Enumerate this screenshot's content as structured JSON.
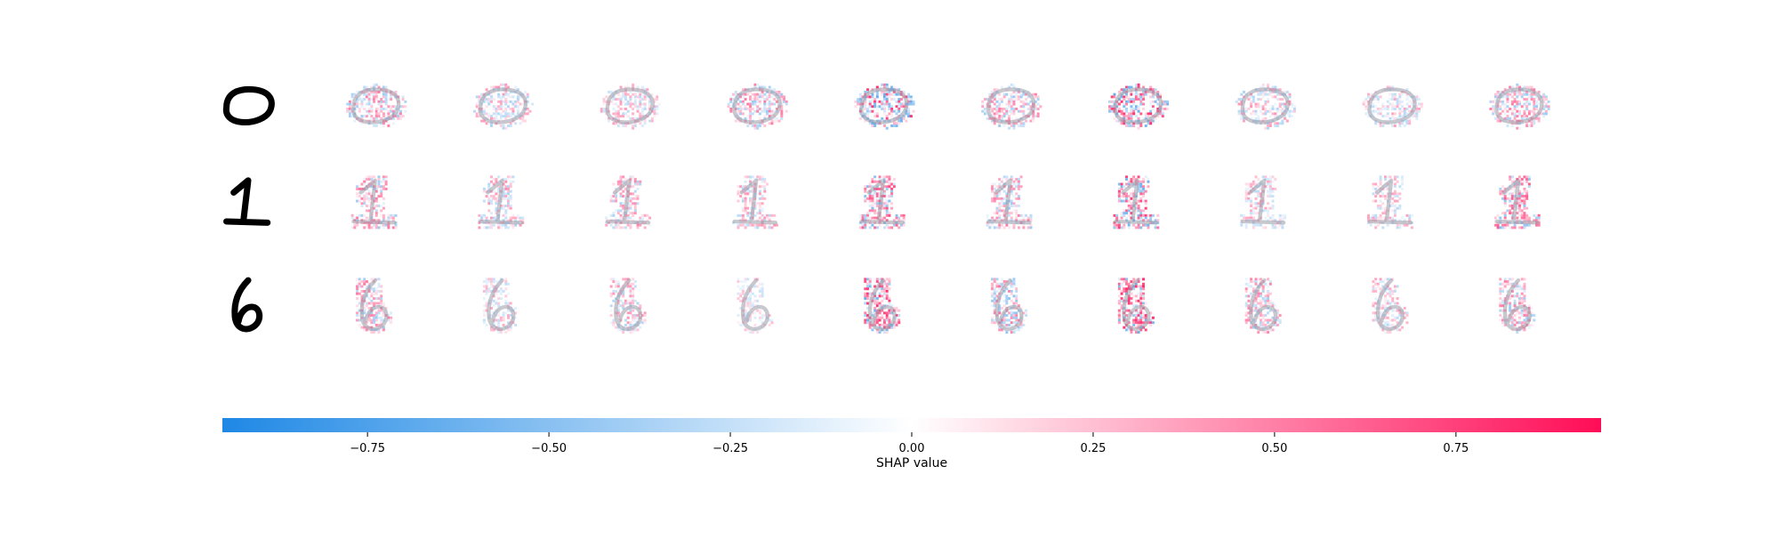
{
  "chart_data": {
    "type": "heatmap",
    "description_digits": [
      "0",
      "1",
      "6"
    ],
    "grid": {
      "rows": 3,
      "columns": 11,
      "first_column": "input digit image",
      "other_columns": 10
    },
    "colorbar": {
      "label": "SHAP value",
      "vmin": -0.95,
      "vmax": 0.95,
      "ticks": [
        -0.75,
        -0.5,
        -0.25,
        0.0,
        0.25,
        0.5,
        0.75
      ],
      "tick_labels": [
        "−0.75",
        "−0.50",
        "−0.25",
        "0.00",
        "0.25",
        "0.50",
        "0.75"
      ],
      "negative_color": "#1E88E5",
      "zero_color": "#FFFFFF",
      "positive_color": "#FF0D57"
    },
    "heat_intensity": [
      [
        0.55,
        0.45,
        0.4,
        0.55,
        0.85,
        0.55,
        0.85,
        0.45,
        0.4,
        0.55
      ],
      [
        0.55,
        0.45,
        0.5,
        0.45,
        0.75,
        0.55,
        0.8,
        0.4,
        0.4,
        0.7
      ],
      [
        0.55,
        0.35,
        0.45,
        0.3,
        0.85,
        0.6,
        0.85,
        0.5,
        0.4,
        0.55
      ]
    ],
    "heat_bias": [
      [
        0.55,
        0.45,
        0.55,
        0.55,
        0.45,
        0.55,
        0.5,
        0.45,
        0.35,
        0.6
      ],
      [
        0.6,
        0.45,
        0.6,
        0.6,
        0.6,
        0.55,
        0.6,
        0.45,
        0.5,
        0.6
      ],
      [
        0.6,
        0.4,
        0.55,
        0.45,
        0.7,
        0.45,
        0.7,
        0.6,
        0.5,
        0.6
      ]
    ]
  }
}
